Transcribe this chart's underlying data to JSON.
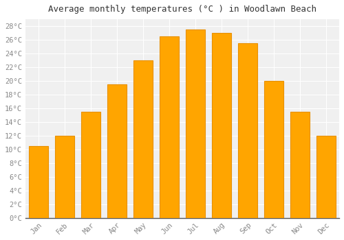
{
  "title": "Average monthly temperatures (°C ) in Woodlawn Beach",
  "months": [
    "Jan",
    "Feb",
    "Mar",
    "Apr",
    "May",
    "Jun",
    "Jul",
    "Aug",
    "Sep",
    "Oct",
    "Nov",
    "Dec"
  ],
  "temperatures": [
    10.5,
    12.0,
    15.5,
    19.5,
    23.0,
    26.5,
    27.5,
    27.0,
    25.5,
    20.0,
    15.5,
    12.0
  ],
  "bar_color": "#FFA500",
  "bar_edge_color": "#E89000",
  "background_color": "#FFFFFF",
  "plot_bg_color": "#F0F0F0",
  "grid_color": "#FFFFFF",
  "ylim": [
    0,
    29
  ],
  "ytick_step": 2,
  "title_fontsize": 9,
  "tick_fontsize": 7.5,
  "font_family": "monospace",
  "tick_color": "#888888",
  "title_color": "#333333"
}
